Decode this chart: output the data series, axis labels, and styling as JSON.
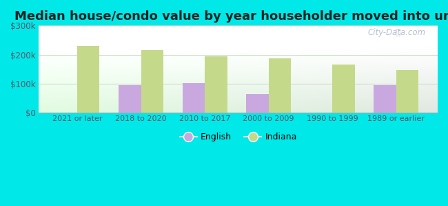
{
  "title": "Median house/condo value by year householder moved into unit",
  "categories": [
    "2021 or later",
    "2018 to 2020",
    "2010 to 2017",
    "2000 to 2009",
    "1990 to 1999",
    "1989 or earlier"
  ],
  "english_values": [
    null,
    95000,
    103000,
    65000,
    null,
    95000
  ],
  "indiana_values": [
    230000,
    215000,
    195000,
    188000,
    167000,
    147000
  ],
  "english_color": "#c9a8e0",
  "indiana_color": "#c5d98a",
  "ylim": [
    0,
    300000
  ],
  "yticks": [
    0,
    100000,
    200000,
    300000
  ],
  "ytick_labels": [
    "$0",
    "$100k",
    "$200k",
    "$300k"
  ],
  "plot_bg_top": "#f0faf5",
  "plot_bg_bottom": "#d8f0e0",
  "outer_background": "#00e8e8",
  "title_fontsize": 13,
  "bar_width": 0.35,
  "legend_labels": [
    "English",
    "Indiana"
  ],
  "watermark": "City-Data.com",
  "grid_color": "#ccddcc"
}
